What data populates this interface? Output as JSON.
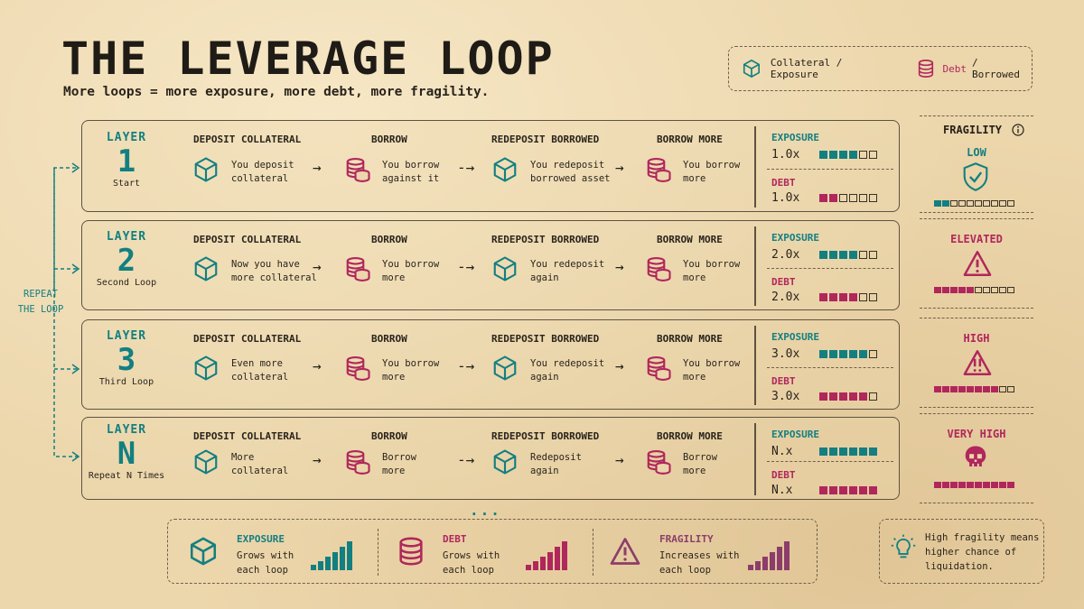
{
  "title": "THE LEVERAGE LOOP",
  "subtitle": "More loops = more exposure, more debt, more fragility.",
  "legend": {
    "collateral": "Collateral / Exposure",
    "debt_word": "Debt",
    "debt_rest": "/ Borrowed"
  },
  "repeat": {
    "line1": "REPEAT",
    "line2": "THE LOOP"
  },
  "colors": {
    "teal": "#137f80",
    "pink": "#b0275c",
    "plum": "#8c3d6b"
  },
  "steps_heads": [
    "DEPOSIT COLLATERAL",
    "BORROW",
    "REDEPOSIT BORROWED",
    "BORROW MORE"
  ],
  "layers": [
    {
      "word": "LAYER",
      "num": "1",
      "cap": "Start",
      "s1": [
        "You deposit",
        "collateral"
      ],
      "s2": [
        "You borrow",
        "against it"
      ],
      "s3": [
        "You redeposit",
        "borrowed asset"
      ],
      "s4": [
        "You borrow",
        "more"
      ],
      "exposure_label": "EXPOSURE",
      "exposure": "1.0x",
      "exposure_filled": 4,
      "debt_label": "DEBT",
      "debt": "1.0x",
      "debt_filled": 2
    },
    {
      "word": "LAYER",
      "num": "2",
      "cap": "Second Loop",
      "s1": [
        "Now you have",
        "more collateral"
      ],
      "s2": [
        "You borrow",
        "more"
      ],
      "s3": [
        "You redeposit",
        "again"
      ],
      "s4": [
        "You borrow",
        "more"
      ],
      "exposure_label": "EXPOSURE",
      "exposure": "2.0x",
      "exposure_filled": 4,
      "debt_label": "DEBT",
      "debt": "2.0x",
      "debt_filled": 4
    },
    {
      "word": "LAYER",
      "num": "3",
      "cap": "Third Loop",
      "s1": [
        "Even more",
        "collateral"
      ],
      "s2": [
        "You borrow",
        "more"
      ],
      "s3": [
        "You redeposit",
        "again"
      ],
      "s4": [
        "You borrow",
        "more"
      ],
      "exposure_label": "EXPOSURE",
      "exposure": "3.0x",
      "exposure_filled": 5,
      "debt_label": "DEBT",
      "debt": "3.0x",
      "debt_filled": 5
    },
    {
      "word": "LAYER",
      "num": "N",
      "cap": "Repeat N Times",
      "s1": [
        "More",
        "collateral"
      ],
      "s2": [
        "Borrow",
        "more"
      ],
      "s3": [
        "Redeposit",
        "again"
      ],
      "s4": [
        "Borrow",
        "more"
      ],
      "exposure_label": "EXPOSURE",
      "exposure": "N.x",
      "exposure_filled": 6,
      "debt_label": "DEBT",
      "debt": "N.x",
      "debt_filled": 6
    }
  ],
  "fragility": {
    "title": "FRAGILITY",
    "levels": [
      {
        "label": "LOW",
        "filled": 2,
        "icon": "shield-check-icon"
      },
      {
        "label": "ELEVATED",
        "filled": 5,
        "icon": "warning-triangle-icon"
      },
      {
        "label": "HIGH",
        "filled": 8,
        "icon": "double-warning-icon"
      },
      {
        "label": "VERY HIGH",
        "filled": 10,
        "icon": "skull-icon"
      }
    ]
  },
  "ellipsis": "...",
  "summary": [
    {
      "head": "EXPOSURE",
      "line1": "Grows with",
      "line2": "each loop"
    },
    {
      "head": "DEBT",
      "line1": "Grows with",
      "line2": "each loop"
    },
    {
      "head": "FRAGILITY",
      "line1": "Increases with",
      "line2": "each loop"
    }
  ],
  "tip": {
    "line1": "High fragility means",
    "line2": "higher chance of",
    "line3": "liquidation."
  }
}
